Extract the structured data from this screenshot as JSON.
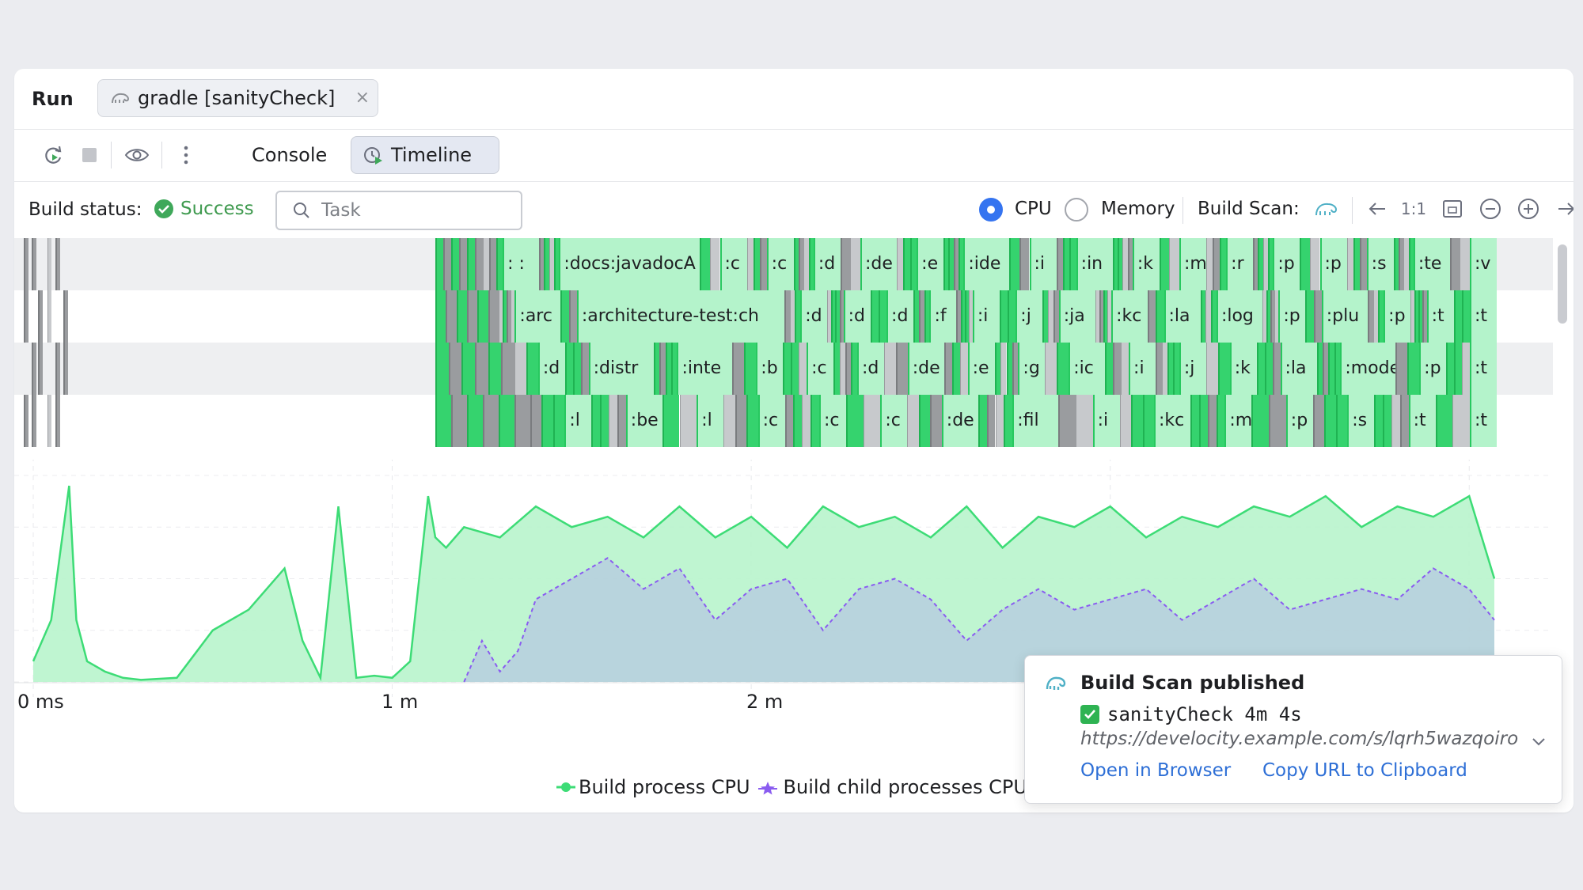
{
  "run_bar": {
    "title": "Run",
    "tab_label": "gradle [sanityCheck]",
    "tab_close": "×"
  },
  "toolbar": {
    "icons": [
      "rerun-icon",
      "stop-icon",
      "eye-icon",
      "more-vertical-icon"
    ],
    "console_label": "Console",
    "timeline_label": "Timeline"
  },
  "status_bar": {
    "label": "Build status:",
    "status": "Success",
    "task_placeholder": "Task",
    "cpu_label": "CPU",
    "memory_label": "Memory",
    "selected_metric": "CPU",
    "build_scan_label": "Build Scan:",
    "zoom_label": "1:1"
  },
  "timeline": {
    "lanes": [
      {
        "bars": [
          {
            "label": ": :",
            "color": "g"
          },
          {
            "label": ":docs:javadocA",
            "color": "g"
          },
          {
            "label": ":c",
            "color": "g"
          },
          {
            "label": ":c",
            "color": "g"
          },
          {
            "label": ":d",
            "color": "g"
          },
          {
            "label": ":de",
            "color": "g"
          },
          {
            "label": ":e",
            "color": "g"
          },
          {
            "label": ":ide",
            "color": "g"
          },
          {
            "label": ":i",
            "color": "g"
          },
          {
            "label": ":in",
            "color": "g"
          },
          {
            "label": ":k",
            "color": "g"
          },
          {
            "label": ":m",
            "color": "g"
          },
          {
            "label": ":r",
            "color": "g"
          },
          {
            "label": ":p",
            "color": "g"
          },
          {
            "label": ":p",
            "color": "g"
          },
          {
            "label": ":s",
            "color": "g"
          },
          {
            "label": ":te",
            "color": "g"
          },
          {
            "label": ":v",
            "color": "g"
          }
        ]
      },
      {
        "bars": [
          {
            "label": ":arc",
            "color": "g"
          },
          {
            "label": ":architecture-test:ch",
            "color": "g"
          },
          {
            "label": ":d",
            "color": "g"
          },
          {
            "label": ":d",
            "color": "g"
          },
          {
            "label": ":d",
            "color": "g"
          },
          {
            "label": ":f",
            "color": "g"
          },
          {
            "label": ":i",
            "color": "g"
          },
          {
            "label": ":j",
            "color": "g"
          },
          {
            "label": ":ja",
            "color": "g"
          },
          {
            "label": ":kc",
            "color": "g"
          },
          {
            "label": ":la",
            "color": "g"
          },
          {
            "label": ":log",
            "color": "g"
          },
          {
            "label": ":p",
            "color": "g"
          },
          {
            "label": ":plu",
            "color": "g"
          },
          {
            "label": ":p",
            "color": "g"
          },
          {
            "label": ":t",
            "color": "g"
          },
          {
            "label": ":t",
            "color": "g"
          }
        ]
      },
      {
        "bars": [
          {
            "label": ":d",
            "color": "g"
          },
          {
            "label": ":distr",
            "color": "g"
          },
          {
            "label": ":inte",
            "color": "g"
          },
          {
            "label": ":b",
            "color": "g"
          },
          {
            "label": ":c",
            "color": "g"
          },
          {
            "label": ":d",
            "color": "g"
          },
          {
            "label": ":de",
            "color": "g"
          },
          {
            "label": ":e",
            "color": "g"
          },
          {
            "label": ":g",
            "color": "g"
          },
          {
            "label": ":ic",
            "color": "g"
          },
          {
            "label": ":i",
            "color": "g"
          },
          {
            "label": ":j",
            "color": "g"
          },
          {
            "label": ":k",
            "color": "g"
          },
          {
            "label": ":la",
            "color": "g"
          },
          {
            "label": ":mode",
            "color": "g"
          },
          {
            "label": ":p",
            "color": "g"
          },
          {
            "label": ":t",
            "color": "g"
          }
        ]
      },
      {
        "bars": [
          {
            "label": ":l",
            "color": "g"
          },
          {
            "label": ":be",
            "color": "g"
          },
          {
            "label": ":l",
            "color": "g"
          },
          {
            "label": ":c",
            "color": "g"
          },
          {
            "label": ":c",
            "color": "g"
          },
          {
            "label": ":c",
            "color": "g"
          },
          {
            "label": ":de",
            "color": "g"
          },
          {
            "label": ":fil",
            "color": "g"
          },
          {
            "label": ":i",
            "color": "g"
          },
          {
            "label": ":kc",
            "color": "g"
          },
          {
            "label": ":m",
            "color": "g"
          },
          {
            "label": ":p",
            "color": "g"
          },
          {
            "label": ":s",
            "color": "g"
          },
          {
            "label": ":t",
            "color": "g"
          },
          {
            "label": ":t",
            "color": "g"
          }
        ]
      }
    ]
  },
  "chart_data": {
    "type": "area",
    "x_ticks": [
      "0 ms",
      "1 m",
      "2 m"
    ],
    "x_unit": "minutes",
    "xlim": [
      0,
      4.07
    ],
    "ylim": [
      0,
      100
    ],
    "series": [
      {
        "name": "Build process CPU",
        "color": "#3ddc76",
        "x": [
          0,
          0.05,
          0.1,
          0.12,
          0.15,
          0.2,
          0.25,
          0.3,
          0.4,
          0.5,
          0.6,
          0.65,
          0.7,
          0.75,
          0.8,
          0.85,
          0.9,
          0.95,
          1.0,
          1.05,
          1.1,
          1.12,
          1.15,
          1.2,
          1.3,
          1.4,
          1.5,
          1.6,
          1.7,
          1.8,
          1.9,
          2.0,
          2.1,
          2.2,
          2.3,
          2.4,
          2.5,
          2.6,
          2.7,
          2.8,
          2.9,
          3.0,
          3.1,
          3.2,
          3.3,
          3.4,
          3.5,
          3.6,
          3.7,
          3.8,
          3.9,
          4.0,
          4.07
        ],
        "values": [
          10,
          30,
          95,
          30,
          10,
          5,
          2,
          1,
          2,
          25,
          35,
          45,
          55,
          20,
          2,
          85,
          2,
          3,
          2,
          10,
          90,
          70,
          65,
          75,
          70,
          85,
          75,
          80,
          70,
          85,
          70,
          80,
          65,
          85,
          75,
          80,
          70,
          85,
          65,
          80,
          75,
          85,
          70,
          80,
          75,
          85,
          80,
          90,
          75,
          85,
          80,
          90,
          50
        ]
      },
      {
        "name": "Build child processes CPU",
        "color": "#8a5cf0",
        "x": [
          1.2,
          1.25,
          1.3,
          1.35,
          1.4,
          1.5,
          1.6,
          1.7,
          1.8,
          1.9,
          2.0,
          2.1,
          2.2,
          2.3,
          2.4,
          2.5,
          2.6,
          2.7,
          2.8,
          2.9,
          3.0,
          3.1,
          3.2,
          3.3,
          3.4,
          3.5,
          3.6,
          3.7,
          3.8,
          3.9,
          4.0,
          4.07
        ],
        "values": [
          0,
          20,
          5,
          15,
          40,
          50,
          60,
          45,
          55,
          30,
          45,
          50,
          25,
          45,
          50,
          40,
          20,
          35,
          45,
          35,
          40,
          45,
          30,
          40,
          50,
          35,
          40,
          45,
          40,
          55,
          45,
          30
        ]
      }
    ],
    "legend": [
      "Build process CPU",
      "Build child processes CPU"
    ],
    "legend_position": "bottom-center",
    "grid": true
  },
  "popup": {
    "title": "Build Scan published",
    "status": "sanityCheck 4m 4s",
    "url": "https://develocity.example.com/s/lqrh5wazqoiro",
    "open_label": "Open in Browser",
    "copy_label": "Copy URL to Clipboard"
  }
}
